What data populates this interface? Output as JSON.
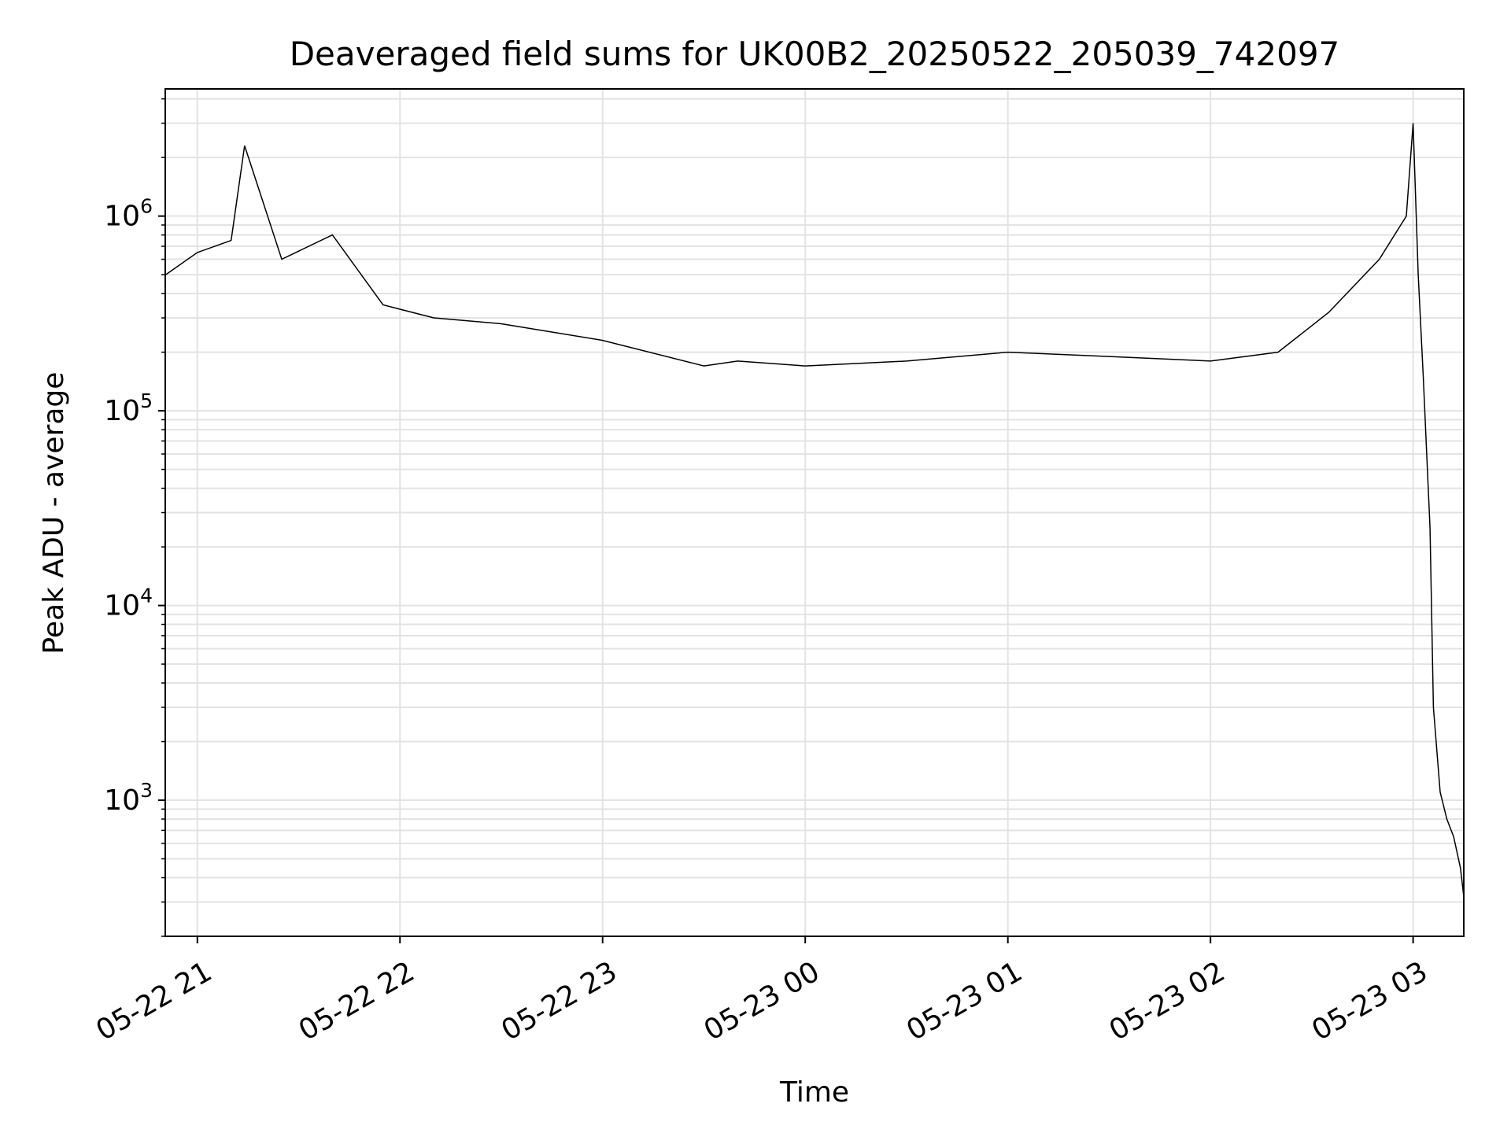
{
  "chart_data": {
    "type": "line",
    "title": "Deaveraged field sums for UK00B2_20250522_205039_742097",
    "xlabel": "Time",
    "ylabel": "Peak ADU - average",
    "y_scale": "log",
    "ylim": [
      200,
      4500000
    ],
    "xlim": [
      "2025-05-22 20:50:30",
      "2025-05-23 03:15:00"
    ],
    "grid": true,
    "line_color": "#000000",
    "x_ticks": [
      {
        "t": "2025-05-22 21:00:00",
        "label": "05-22 21"
      },
      {
        "t": "2025-05-22 22:00:00",
        "label": "05-22 22"
      },
      {
        "t": "2025-05-22 23:00:00",
        "label": "05-22 23"
      },
      {
        "t": "2025-05-23 00:00:00",
        "label": "05-23 00"
      },
      {
        "t": "2025-05-23 01:00:00",
        "label": "05-23 01"
      },
      {
        "t": "2025-05-23 02:00:00",
        "label": "05-23 02"
      },
      {
        "t": "2025-05-23 03:00:00",
        "label": "05-23 03"
      }
    ],
    "y_ticks": [
      {
        "value": 1000,
        "base": "10",
        "exp": "3"
      },
      {
        "value": 10000,
        "base": "10",
        "exp": "4"
      },
      {
        "value": 100000,
        "base": "10",
        "exp": "5"
      },
      {
        "value": 1000000,
        "base": "10",
        "exp": "6"
      }
    ],
    "series": [
      {
        "x": [
          "2025-05-22 20:50:39",
          "2025-05-22 21:00:00",
          "2025-05-22 21:10:00",
          "2025-05-22 21:14:00",
          "2025-05-22 21:25:00",
          "2025-05-22 21:40:00",
          "2025-05-22 21:55:00",
          "2025-05-22 22:10:00",
          "2025-05-22 22:30:00",
          "2025-05-22 23:00:00",
          "2025-05-22 23:30:00",
          "2025-05-22 23:40:00",
          "2025-05-23 00:00:00",
          "2025-05-23 00:30:00",
          "2025-05-23 01:00:00",
          "2025-05-23 01:30:00",
          "2025-05-23 02:00:00",
          "2025-05-23 02:20:00",
          "2025-05-23 02:35:00",
          "2025-05-23 02:50:00",
          "2025-05-23 02:58:00",
          "2025-05-23 03:00:00",
          "2025-05-23 03:01:30",
          "2025-05-23 03:03:00",
          "2025-05-23 03:05:00",
          "2025-05-23 03:06:00",
          "2025-05-23 03:08:00",
          "2025-05-23 03:10:00",
          "2025-05-23 03:12:00",
          "2025-05-23 03:14:00",
          "2025-05-23 03:15:00"
        ],
        "y": [
          500000,
          650000,
          750000,
          2300000,
          600000,
          800000,
          350000,
          300000,
          280000,
          230000,
          170000,
          180000,
          170000,
          180000,
          200000,
          190000,
          180000,
          200000,
          320000,
          600000,
          1000000,
          3000000,
          500000,
          150000,
          25000,
          3000,
          1100,
          800,
          650,
          450,
          320
        ]
      }
    ]
  }
}
